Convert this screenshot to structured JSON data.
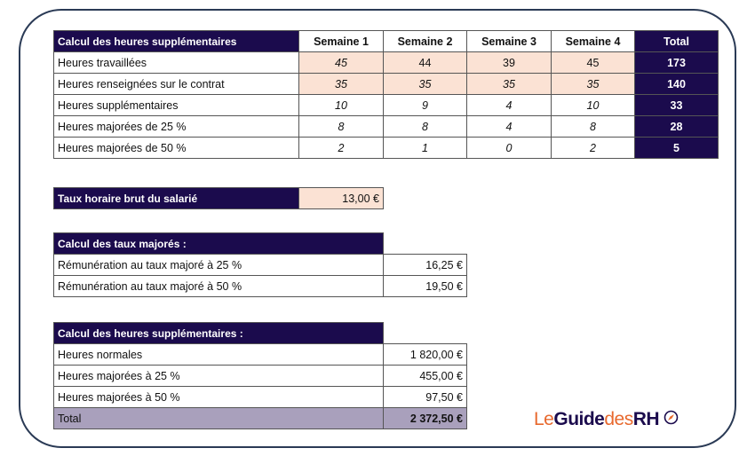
{
  "main_table": {
    "title": "Calcul des heures supplémentaires",
    "columns": [
      "Semaine 1",
      "Semaine 2",
      "Semaine 3",
      "Semaine 4",
      "Total"
    ],
    "rows": [
      {
        "label": "Heures travaillées",
        "values": [
          "45",
          "44",
          "39",
          "45"
        ],
        "total": "173"
      },
      {
        "label": "Heures renseignées sur le contrat",
        "values": [
          "35",
          "35",
          "35",
          "35"
        ],
        "total": "140"
      },
      {
        "label": "Heures supplémentaires",
        "values": [
          "10",
          "9",
          "4",
          "10"
        ],
        "total": "33"
      },
      {
        "label": "Heures majorées de 25 %",
        "values": [
          "8",
          "8",
          "4",
          "8"
        ],
        "total": "28"
      },
      {
        "label": "Heures majorées de 50 %",
        "values": [
          "2",
          "1",
          "0",
          "2"
        ],
        "total": "5"
      }
    ]
  },
  "hourly_rate": {
    "label": "Taux horaire brut du salarié",
    "value": "13,00 €"
  },
  "rates": {
    "title": "Calcul des taux majorés :",
    "rows": [
      {
        "label": "Rémunération au taux majoré à 25 %",
        "value": "16,25 €"
      },
      {
        "label": "Rémunération au taux majoré à 50 %",
        "value": "19,50 €"
      }
    ]
  },
  "overtime": {
    "title": "Calcul des heures supplémentaires :",
    "rows": [
      {
        "label": "Heures normales",
        "value": "1 820,00 €"
      },
      {
        "label": "Heures majorées à 25 %",
        "value": "455,00 €"
      },
      {
        "label": "Heures majorées à 50 %",
        "value": "97,50 €"
      }
    ],
    "total_label": "Total",
    "total_value": "2 372,50 €"
  },
  "logo": {
    "part1": "Le",
    "part2": "Guide",
    "part3": "des",
    "part4": "RH",
    "icon": "compass-icon"
  },
  "colors": {
    "header_bg": "#1b0b4d",
    "accent": "#e8692e",
    "highlight": "#fbe2d4",
    "total_row": "#a9a0bc"
  }
}
